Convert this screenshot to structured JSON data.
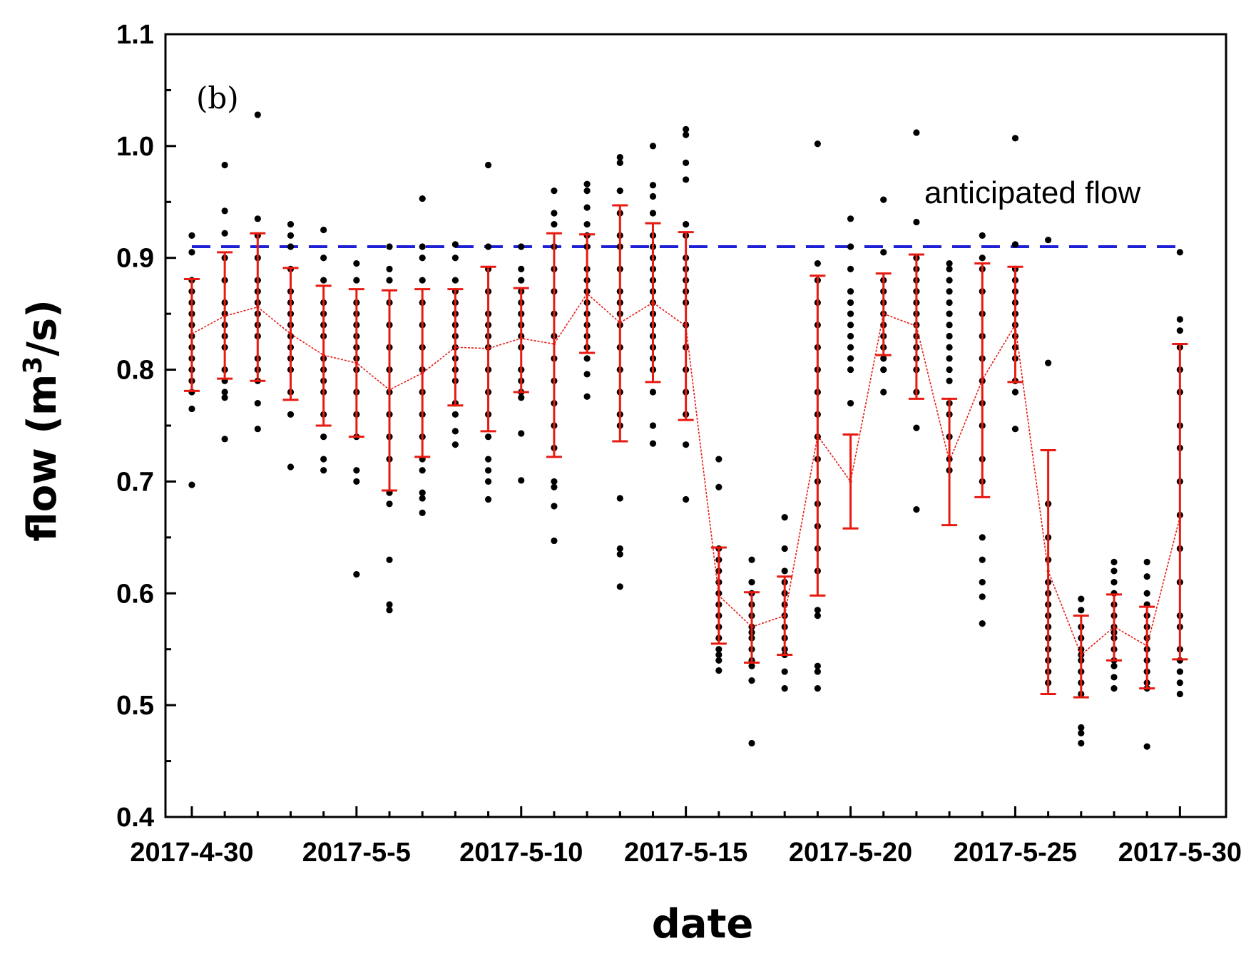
{
  "chart_data": {
    "type": "scatter",
    "panel_label": "(b)",
    "title": "",
    "xlabel": "date",
    "ylabel": "flow (m³/s)",
    "ylabel_parts": {
      "pre": "flow (m",
      "sup": "3",
      "post": "/s)"
    },
    "xlim": [
      -0.8,
      31.4
    ],
    "ylim": [
      0.4,
      1.1
    ],
    "yticks": [
      "0.4",
      "0.5",
      "0.6",
      "0.7",
      "0.8",
      "0.9",
      "1.0",
      "1.1"
    ],
    "xticks": [
      {
        "x": 0,
        "label": "2017-4-30"
      },
      {
        "x": 5,
        "label": "2017-5-5"
      },
      {
        "x": 10,
        "label": "2017-5-10"
      },
      {
        "x": 15,
        "label": "2017-5-15"
      },
      {
        "x": 20,
        "label": "2017-5-20"
      },
      {
        "x": 25,
        "label": "2017-5-25"
      },
      {
        "x": 30,
        "label": "2017-5-30"
      }
    ],
    "anticipated_flow": {
      "label": "anticipated flow",
      "value": 0.91,
      "color": "#1f1fd6"
    },
    "colors": {
      "points": "#000000",
      "errorbars": "#e8190f",
      "mean_line": "#e8190f"
    },
    "daily": [
      {
        "day": 0,
        "mean": 0.832,
        "lower": 0.781,
        "upper": 0.881,
        "points": [
          0.92,
          0.905,
          0.88,
          0.87,
          0.86,
          0.85,
          0.84,
          0.83,
          0.82,
          0.81,
          0.8,
          0.79,
          0.78,
          0.765,
          0.697
        ]
      },
      {
        "day": 1,
        "mean": 0.848,
        "lower": 0.792,
        "upper": 0.905,
        "points": [
          0.983,
          0.942,
          0.922,
          0.9,
          0.88,
          0.86,
          0.85,
          0.84,
          0.83,
          0.82,
          0.8,
          0.79,
          0.78,
          0.775,
          0.738
        ]
      },
      {
        "day": 2,
        "mean": 0.856,
        "lower": 0.79,
        "upper": 0.922,
        "points": [
          1.028,
          0.935,
          0.92,
          0.9,
          0.88,
          0.87,
          0.86,
          0.85,
          0.84,
          0.83,
          0.81,
          0.8,
          0.79,
          0.77,
          0.747
        ]
      },
      {
        "day": 3,
        "mean": 0.832,
        "lower": 0.773,
        "upper": 0.891,
        "points": [
          0.93,
          0.92,
          0.91,
          0.89,
          0.87,
          0.86,
          0.85,
          0.84,
          0.83,
          0.82,
          0.81,
          0.8,
          0.78,
          0.76,
          0.713
        ]
      },
      {
        "day": 4,
        "mean": 0.813,
        "lower": 0.75,
        "upper": 0.875,
        "points": [
          0.925,
          0.9,
          0.88,
          0.86,
          0.85,
          0.84,
          0.83,
          0.81,
          0.8,
          0.79,
          0.78,
          0.76,
          0.74,
          0.72,
          0.71
        ]
      },
      {
        "day": 5,
        "mean": 0.806,
        "lower": 0.74,
        "upper": 0.872,
        "points": [
          0.895,
          0.88,
          0.86,
          0.85,
          0.84,
          0.83,
          0.82,
          0.81,
          0.8,
          0.78,
          0.76,
          0.74,
          0.71,
          0.7,
          0.617
        ]
      },
      {
        "day": 6,
        "mean": 0.782,
        "lower": 0.692,
        "upper": 0.871,
        "points": [
          0.91,
          0.89,
          0.88,
          0.86,
          0.84,
          0.82,
          0.8,
          0.78,
          0.76,
          0.74,
          0.72,
          0.69,
          0.68,
          0.63,
          0.59,
          0.585
        ]
      },
      {
        "day": 7,
        "mean": 0.797,
        "lower": 0.722,
        "upper": 0.872,
        "points": [
          0.953,
          0.91,
          0.9,
          0.88,
          0.86,
          0.84,
          0.82,
          0.8,
          0.78,
          0.76,
          0.74,
          0.72,
          0.71,
          0.69,
          0.685,
          0.672
        ]
      },
      {
        "day": 8,
        "mean": 0.82,
        "lower": 0.768,
        "upper": 0.872,
        "points": [
          0.912,
          0.9,
          0.88,
          0.87,
          0.86,
          0.85,
          0.84,
          0.83,
          0.82,
          0.81,
          0.8,
          0.79,
          0.77,
          0.76,
          0.745,
          0.733
        ]
      },
      {
        "day": 9,
        "mean": 0.819,
        "lower": 0.745,
        "upper": 0.892,
        "points": [
          0.983,
          0.91,
          0.89,
          0.87,
          0.85,
          0.84,
          0.83,
          0.82,
          0.8,
          0.78,
          0.76,
          0.74,
          0.72,
          0.71,
          0.7,
          0.684
        ]
      },
      {
        "day": 10,
        "mean": 0.828,
        "lower": 0.78,
        "upper": 0.873,
        "points": [
          0.91,
          0.89,
          0.88,
          0.87,
          0.86,
          0.85,
          0.84,
          0.83,
          0.82,
          0.8,
          0.79,
          0.78,
          0.775,
          0.743,
          0.701
        ]
      },
      {
        "day": 11,
        "mean": 0.823,
        "lower": 0.722,
        "upper": 0.922,
        "points": [
          0.96,
          0.94,
          0.93,
          0.91,
          0.89,
          0.87,
          0.85,
          0.83,
          0.81,
          0.79,
          0.77,
          0.75,
          0.73,
          0.7,
          0.695,
          0.678,
          0.647
        ]
      },
      {
        "day": 12,
        "mean": 0.868,
        "lower": 0.815,
        "upper": 0.921,
        "points": [
          0.966,
          0.96,
          0.945,
          0.93,
          0.92,
          0.91,
          0.89,
          0.88,
          0.87,
          0.86,
          0.85,
          0.84,
          0.83,
          0.82,
          0.81,
          0.796,
          0.776
        ]
      },
      {
        "day": 13,
        "mean": 0.842,
        "lower": 0.736,
        "upper": 0.947,
        "points": [
          0.99,
          0.985,
          0.96,
          0.94,
          0.92,
          0.91,
          0.89,
          0.87,
          0.86,
          0.85,
          0.84,
          0.82,
          0.8,
          0.78,
          0.76,
          0.75,
          0.685,
          0.64,
          0.635,
          0.606
        ]
      },
      {
        "day": 14,
        "mean": 0.86,
        "lower": 0.789,
        "upper": 0.931,
        "points": [
          1.0,
          0.965,
          0.955,
          0.94,
          0.92,
          0.91,
          0.9,
          0.89,
          0.88,
          0.87,
          0.86,
          0.85,
          0.84,
          0.83,
          0.82,
          0.81,
          0.8,
          0.78,
          0.75,
          0.734
        ]
      },
      {
        "day": 15,
        "mean": 0.839,
        "lower": 0.755,
        "upper": 0.923,
        "points": [
          1.015,
          1.01,
          0.985,
          0.97,
          0.93,
          0.92,
          0.9,
          0.89,
          0.88,
          0.87,
          0.86,
          0.84,
          0.82,
          0.8,
          0.78,
          0.76,
          0.733,
          0.684
        ]
      },
      {
        "day": 16,
        "mean": 0.598,
        "lower": 0.555,
        "upper": 0.641,
        "points": [
          0.72,
          0.695,
          0.64,
          0.63,
          0.62,
          0.61,
          0.6,
          0.59,
          0.58,
          0.57,
          0.56,
          0.55,
          0.545,
          0.54,
          0.531
        ]
      },
      {
        "day": 17,
        "mean": 0.57,
        "lower": 0.538,
        "upper": 0.601,
        "points": [
          0.63,
          0.61,
          0.6,
          0.59,
          0.58,
          0.57,
          0.565,
          0.56,
          0.55,
          0.54,
          0.535,
          0.522,
          0.466
        ]
      },
      {
        "day": 18,
        "mean": 0.58,
        "lower": 0.545,
        "upper": 0.615,
        "points": [
          0.668,
          0.64,
          0.62,
          0.61,
          0.6,
          0.59,
          0.58,
          0.57,
          0.56,
          0.55,
          0.545,
          0.53,
          0.515
        ]
      },
      {
        "day": 19,
        "mean": 0.741,
        "lower": 0.598,
        "upper": 0.884,
        "points": [
          1.002,
          0.895,
          0.88,
          0.86,
          0.84,
          0.82,
          0.8,
          0.78,
          0.76,
          0.74,
          0.72,
          0.7,
          0.68,
          0.66,
          0.64,
          0.62,
          0.585,
          0.58,
          0.535,
          0.53,
          0.515
        ]
      },
      {
        "day": 20,
        "mean": 0.7,
        "lower": 0.658,
        "upper": 0.742,
        "points": [
          0.935,
          0.91,
          0.89,
          0.87,
          0.86,
          0.85,
          0.84,
          0.83,
          0.82,
          0.81,
          0.8,
          0.77
        ]
      },
      {
        "day": 21,
        "mean": 0.85,
        "lower": 0.813,
        "upper": 0.886,
        "points": [
          0.952,
          0.905,
          0.88,
          0.87,
          0.86,
          0.85,
          0.84,
          0.83,
          0.82,
          0.81,
          0.8,
          0.78
        ]
      },
      {
        "day": 22,
        "mean": 0.839,
        "lower": 0.774,
        "upper": 0.903,
        "points": [
          1.012,
          0.932,
          0.9,
          0.89,
          0.88,
          0.87,
          0.86,
          0.85,
          0.84,
          0.83,
          0.82,
          0.81,
          0.8,
          0.78,
          0.748,
          0.675
        ]
      },
      {
        "day": 23,
        "mean": 0.718,
        "lower": 0.661,
        "upper": 0.774,
        "points": [
          0.895,
          0.89,
          0.88,
          0.87,
          0.86,
          0.85,
          0.84,
          0.83,
          0.82,
          0.81,
          0.8,
          0.79,
          0.77,
          0.76,
          0.74,
          0.72,
          0.71
        ]
      },
      {
        "day": 24,
        "mean": 0.791,
        "lower": 0.686,
        "upper": 0.895,
        "points": [
          0.92,
          0.9,
          0.89,
          0.87,
          0.85,
          0.83,
          0.81,
          0.79,
          0.77,
          0.75,
          0.72,
          0.7,
          0.65,
          0.63,
          0.61,
          0.597,
          0.573
        ]
      },
      {
        "day": 25,
        "mean": 0.84,
        "lower": 0.789,
        "upper": 0.892,
        "points": [
          1.007,
          0.912,
          0.89,
          0.88,
          0.87,
          0.86,
          0.85,
          0.84,
          0.83,
          0.82,
          0.81,
          0.79,
          0.78,
          0.747
        ]
      },
      {
        "day": 26,
        "mean": 0.62,
        "lower": 0.51,
        "upper": 0.728,
        "points": [
          0.916,
          0.806,
          0.68,
          0.65,
          0.63,
          0.61,
          0.6,
          0.59,
          0.58,
          0.57,
          0.56,
          0.55,
          0.54,
          0.53,
          0.52
        ]
      },
      {
        "day": 27,
        "mean": 0.545,
        "lower": 0.507,
        "upper": 0.58,
        "points": [
          0.595,
          0.585,
          0.57,
          0.56,
          0.55,
          0.545,
          0.54,
          0.53,
          0.52,
          0.51,
          0.48,
          0.475,
          0.466
        ]
      },
      {
        "day": 28,
        "mean": 0.57,
        "lower": 0.54,
        "upper": 0.599,
        "points": [
          0.628,
          0.62,
          0.61,
          0.6,
          0.59,
          0.58,
          0.57,
          0.565,
          0.56,
          0.55,
          0.54,
          0.535,
          0.525,
          0.515
        ]
      },
      {
        "day": 29,
        "mean": 0.553,
        "lower": 0.515,
        "upper": 0.588,
        "points": [
          0.628,
          0.615,
          0.6,
          0.59,
          0.58,
          0.57,
          0.56,
          0.55,
          0.54,
          0.53,
          0.52,
          0.515,
          0.463
        ]
      },
      {
        "day": 30,
        "mean": 0.668,
        "lower": 0.541,
        "upper": 0.823,
        "points": [
          0.905,
          0.845,
          0.835,
          0.82,
          0.8,
          0.78,
          0.75,
          0.73,
          0.7,
          0.67,
          0.64,
          0.61,
          0.58,
          0.57,
          0.55,
          0.54,
          0.53,
          0.52,
          0.51
        ]
      }
    ]
  }
}
